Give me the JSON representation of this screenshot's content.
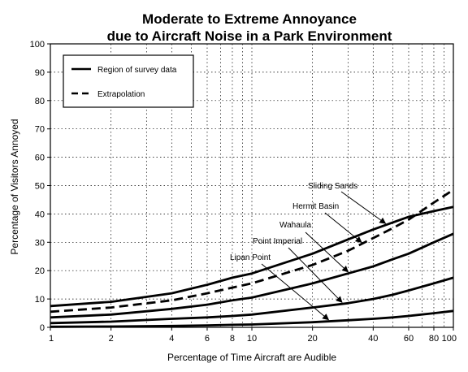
{
  "chart_data": {
    "type": "line",
    "title": [
      "Moderate to Extreme Annoyance",
      "due to Aircraft Noise in a Park Environment"
    ],
    "xlabel": "Percentage of Time Aircraft are Audible",
    "ylabel": "Percentage of Visitors Annoyed",
    "x_scale": "log",
    "xlim": [
      1,
      100
    ],
    "ylim": [
      0,
      100
    ],
    "x_ticks": [
      1,
      2,
      4,
      6,
      8,
      10,
      20,
      40,
      60,
      80,
      100
    ],
    "x_tick_labels": [
      "1",
      "2",
      "4",
      "6",
      "8",
      "10",
      "20",
      "40",
      "60",
      "80",
      "100"
    ],
    "y_ticks": [
      0,
      10,
      20,
      30,
      40,
      50,
      60,
      70,
      80,
      90,
      100
    ],
    "y_tick_labels": [
      "0",
      "10",
      "20",
      "30",
      "40",
      "50",
      "60",
      "70",
      "80",
      "90",
      "100"
    ],
    "grid": true,
    "legend_position": "top-left",
    "legend": [
      {
        "label": "Region of survey data",
        "style": "solid"
      },
      {
        "label": "Extrapolation",
        "style": "dashed"
      }
    ],
    "series": [
      {
        "name": "Sliding Sands",
        "style": "solid",
        "color": "#000000",
        "x": [
          1,
          2,
          4,
          6,
          8,
          10,
          20,
          30,
          40,
          50,
          60,
          80,
          100
        ],
        "y": [
          7.5,
          9,
          12,
          15,
          17.5,
          19,
          26,
          31,
          34.5,
          37,
          39,
          41,
          42.5
        ]
      },
      {
        "name": "Hermit Basin",
        "style": "dashed",
        "color": "#000000",
        "x": [
          1,
          2,
          4,
          6,
          8,
          10,
          20,
          30,
          40,
          50,
          60,
          80,
          100
        ],
        "y": [
          5.5,
          7,
          9.5,
          12,
          14,
          15.5,
          22,
          27,
          31.5,
          35,
          38,
          44,
          48.5
        ]
      },
      {
        "name": "Wahaula",
        "style": "solid",
        "color": "#000000",
        "x": [
          1,
          2,
          4,
          6,
          8,
          10,
          20,
          30,
          40,
          50,
          60,
          80,
          100
        ],
        "y": [
          3.5,
          4.5,
          6.5,
          8,
          9.5,
          10.5,
          15.5,
          19,
          21.5,
          24,
          26,
          30,
          33
        ]
      },
      {
        "name": "Point Imperial",
        "style": "solid",
        "color": "#000000",
        "x": [
          1,
          2,
          4,
          6,
          8,
          10,
          20,
          30,
          40,
          50,
          60,
          80,
          100
        ],
        "y": [
          1.5,
          2,
          3,
          3.5,
          4,
          4.5,
          7,
          8.5,
          10,
          11.5,
          13,
          15.5,
          17.5
        ]
      },
      {
        "name": "Lipan Point",
        "style": "solid",
        "color": "#000000",
        "x": [
          1,
          2,
          4,
          6,
          8,
          10,
          20,
          30,
          40,
          50,
          60,
          80,
          100
        ],
        "y": [
          0.2,
          0.3,
          0.5,
          0.7,
          0.9,
          1,
          1.8,
          2.5,
          3,
          3.5,
          4,
          5,
          5.8
        ]
      }
    ],
    "annotations": [
      {
        "text": "Sliding Sands",
        "target_series": "Sliding Sands"
      },
      {
        "text": "Hermit Basin",
        "target_series": "Hermit Basin"
      },
      {
        "text": "Wahaula",
        "target_series": "Wahaula"
      },
      {
        "text": "Point Imperial",
        "target_series": "Point Imperial"
      },
      {
        "text": "Lipan Point",
        "target_series": "Lipan Point"
      }
    ]
  }
}
